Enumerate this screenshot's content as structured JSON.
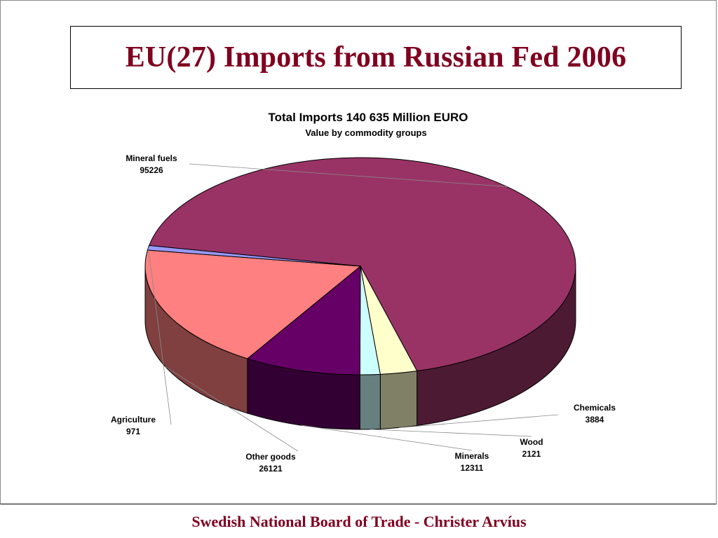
{
  "slide": {
    "title": "EU(27) Imports from Russian Fed 2006",
    "footer": "Swedish National Board of Trade - Christer Arvíus"
  },
  "chart_data": {
    "type": "pie",
    "title": "Total Imports 140 635 Million EURO",
    "subtitle": "Value by commodity groups",
    "units": "Million EURO",
    "slices": [
      {
        "label": "Mineral fuels",
        "value": 95226,
        "color": "#993366",
        "side_color": "#4d1a33"
      },
      {
        "label": "Chemicals",
        "value": 3884,
        "color": "#ffffcc",
        "side_color": "#808066"
      },
      {
        "label": "Wood",
        "value": 2121,
        "color": "#ccffff",
        "side_color": "#668080"
      },
      {
        "label": "Minerals",
        "value": 12311,
        "color": "#660066",
        "side_color": "#330033"
      },
      {
        "label": "Other goods",
        "value": 26121,
        "color": "#ff8080",
        "side_color": "#804040"
      },
      {
        "label": "Agriculture",
        "value": 971,
        "color": "#9999ff",
        "side_color": "#4d4d80"
      }
    ],
    "start_angle_deg": 191,
    "legend": "none",
    "style": "3d-pie"
  }
}
